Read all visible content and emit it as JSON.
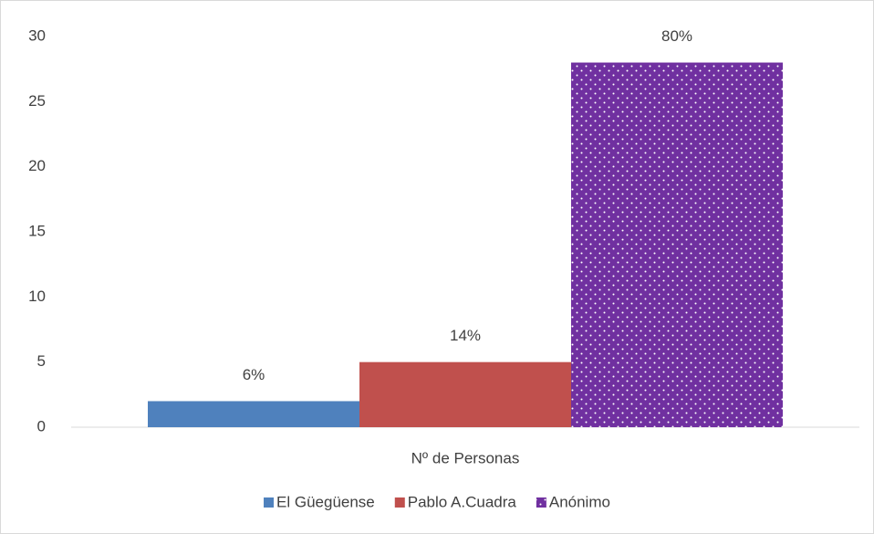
{
  "chart_data": {
    "type": "bar",
    "categories": [
      "Nº de Personas"
    ],
    "series": [
      {
        "name": "El Güegüense",
        "color": "#4f81bd",
        "values": [
          2
        ]
      },
      {
        "name": "Pablo A.Cuadra",
        "color": "#c0504d",
        "values": [
          5
        ]
      },
      {
        "name": "Anónimo",
        "color": "#7030a0",
        "values": [
          28
        ],
        "pattern": "dots"
      }
    ],
    "annotations": [
      "6%",
      "14%",
      "80%"
    ],
    "ylim": [
      0,
      30
    ],
    "yticks": [
      0,
      5,
      10,
      15,
      20,
      25,
      30
    ],
    "grid": false,
    "legend": "bottom"
  }
}
